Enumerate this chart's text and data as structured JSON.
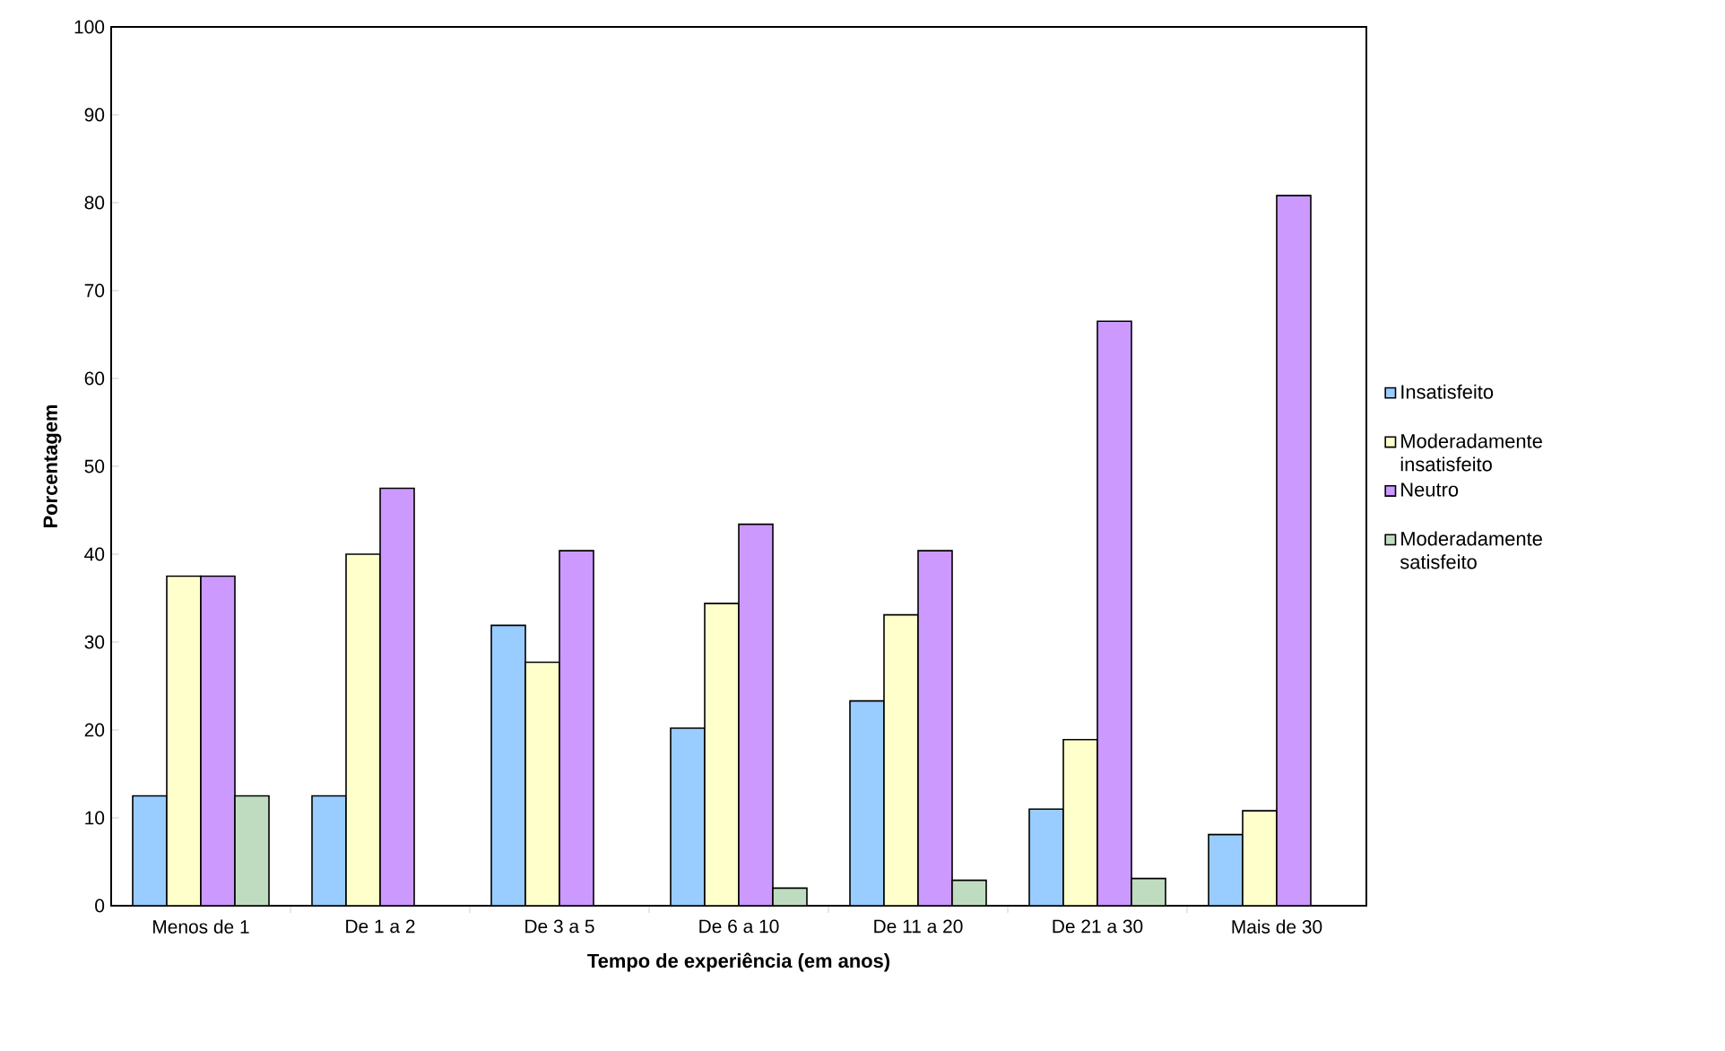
{
  "chart_data": {
    "type": "bar",
    "xlabel": "Tempo de experiência (em anos)",
    "ylabel": "Porcentagem",
    "categories": [
      "Menos de 1",
      "De 1 a 2",
      "De 3 a 5",
      "De 6 a 10",
      "De 11 a 20",
      "De 21 a 30",
      "Mais de 30"
    ],
    "series": [
      {
        "name": "Insatisfeito",
        "color": "#99ccff",
        "values": [
          12.5,
          12.5,
          31.9,
          20.2,
          23.3,
          11.0,
          8.1
        ]
      },
      {
        "name": "Moderadamente insatisfeito",
        "color": "#ffffcc",
        "values": [
          37.5,
          40.0,
          27.7,
          34.4,
          33.1,
          18.9,
          10.8
        ]
      },
      {
        "name": "Neutro",
        "color": "#cc99ff",
        "values": [
          37.5,
          47.5,
          40.4,
          43.4,
          40.4,
          66.5,
          80.8
        ]
      },
      {
        "name": "Moderadamente satisfeito",
        "color": "#c0dcc0",
        "values": [
          12.5,
          0,
          0,
          2.0,
          2.9,
          3.1,
          0
        ]
      }
    ],
    "ylim": [
      0,
      100
    ],
    "yticks": [
      0,
      10,
      20,
      30,
      40,
      50,
      60,
      70,
      80,
      90,
      100
    ],
    "grid": false,
    "legend": "right"
  }
}
